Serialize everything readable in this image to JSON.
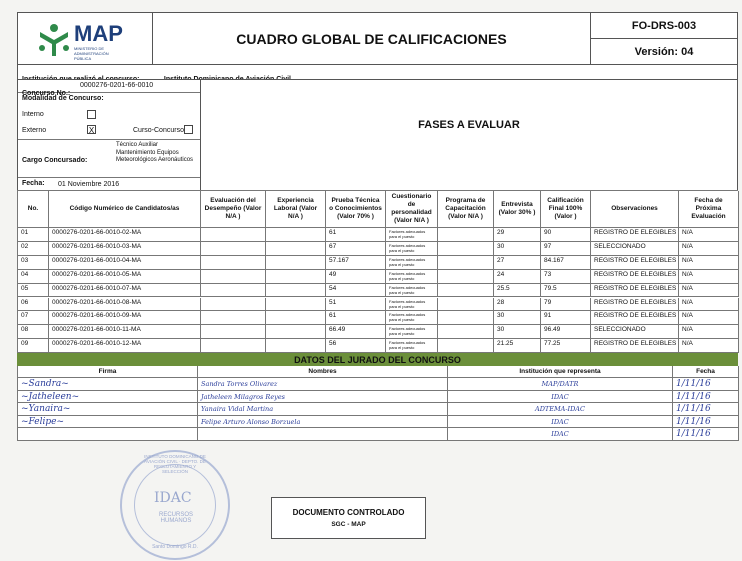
{
  "header": {
    "logo_text": "MAP",
    "logo_sub": "MINISTERIO DE ADMINISTRACIÓN PÚBLICA",
    "title": "CUADRO GLOBAL DE CALIFICACIONES",
    "code": "FO-DRS-003",
    "version": "Versión: 04"
  },
  "info": {
    "institucion_label": "Institución que realizó el concurso:",
    "institucion": "Instituto Dominicano de Aviación Civil",
    "concurso_label": "Concurso No.:",
    "concurso": "0000276-0201-66-0010",
    "modalidad_label": "Modalidad de Concurso:",
    "interno": "Interno",
    "interno_checked": "",
    "externo": "Externo",
    "externo_checked": "X",
    "curso": "Curso-Concurso",
    "cargo_label": "Cargo Concursado:",
    "cargo": "Técnico Auxiliar Mantenimiento Equipos Meteorológicos Aeronáuticos",
    "fecha_label": "Fecha:",
    "fecha": "01 Noviembre 2016",
    "fases": "FASES A EVALUAR"
  },
  "table": {
    "headers": [
      "No.",
      "Código Numérico de Candidatos/as",
      "Evaluación del Desempeño (Valor N/A )",
      "Experiencia Laboral (Valor N/A )",
      "Prueba Técnica o Conocimientos (Valor 70% )",
      "Cuestionario de personalidad (Valor N/A )",
      "Programa de Capacitación (Valor N/A )",
      "Entrevista (Valor 30% )",
      "Calificación Final 100% (Valor )",
      "Observaciones",
      "Fecha de Próxima Evaluación"
    ],
    "rows": [
      [
        "01",
        "0000276-0201-66-0010-02-MA",
        "",
        "",
        "61",
        "Factores adecuados para el puesto",
        "",
        "29",
        "90",
        "REGISTRO DE ELEGIBLES",
        "N/A"
      ],
      [
        "02",
        "0000276-0201-66-0010-03-MA",
        "",
        "",
        "67",
        "Factores adecuados para el puesto",
        "",
        "30",
        "97",
        "SELECCIONADO",
        "N/A"
      ],
      [
        "03",
        "0000276-0201-66-0010-04-MA",
        "",
        "",
        "57.167",
        "Factores adecuados para el puesto",
        "",
        "27",
        "84.167",
        "REGISTRO DE ELEGIBLES",
        "N/A"
      ],
      [
        "04",
        "0000276-0201-66-0010-05-MA",
        "",
        "",
        "49",
        "Factores adecuados para el puesto",
        "",
        "24",
        "73",
        "REGISTRO DE ELEGIBLES",
        "N/A"
      ],
      [
        "05",
        "0000276-0201-66-0010-07-MA",
        "",
        "",
        "54",
        "Factores adecuados para el puesto",
        "",
        "25.5",
        "79.5",
        "REGISTRO DE ELEGIBLES",
        "N/A"
      ],
      [
        "06",
        "0000276-0201-66-0010-08-MA",
        "",
        "",
        "51",
        "Factores adecuados para el puesto",
        "",
        "28",
        "79",
        "REGISTRO DE ELEGIBLES",
        "N/A"
      ],
      [
        "07",
        "0000276-0201-66-0010-09-MA",
        "",
        "",
        "61",
        "Factores adecuados para el puesto",
        "",
        "30",
        "91",
        "REGISTRO DE ELEGIBLES",
        "N/A"
      ],
      [
        "08",
        "0000276-0201-66-0010-11-MA",
        "",
        "",
        "66.49",
        "Factores adecuados para el puesto",
        "",
        "30",
        "96.49",
        "SELECCIONADO",
        "N/A"
      ],
      [
        "09",
        "0000276-0201-66-0010-12-MA",
        "",
        "",
        "56",
        "Factores adecuados para el puesto",
        "",
        "21.25",
        "77.25",
        "REGISTRO DE ELEGIBLES",
        "N/A"
      ]
    ]
  },
  "jury": {
    "title": "DATOS DEL JURADO DEL CONCURSO",
    "headers": [
      "Firma",
      "Nombres",
      "Institución que representa",
      "Fecha"
    ],
    "rows": [
      [
        "Sandra Torres Olivarez",
        "MAP/DATR",
        "1/11/16"
      ],
      [
        "Jatheleen Milagros Reyes",
        "IDAC",
        "1/11/16"
      ],
      [
        "Yanaira Vidal Martina",
        "ADTEMA-IDAC",
        "1/11/16"
      ],
      [
        "Felipe Arturo Alonso Borzuela",
        "IDAC",
        "1/11/16"
      ],
      [
        "",
        "IDAC",
        "1/11/16"
      ]
    ]
  },
  "stamp": {
    "text": "INSTITUTO DOMINICANO DE AVIACIÓN CIVIL · DEPTO. DE RECLUTAMIENTO Y SELECCIÓN",
    "logo": "IDAC",
    "sub": "RECURSOS HUMANOS",
    "city": "Santo Domingo R.D."
  },
  "footer": {
    "line1": "DOCUMENTO CONTROLADO",
    "line2": "SGC - MAP"
  },
  "colors": {
    "green": "#6b8f3a",
    "ink": "#2a3d9a"
  }
}
